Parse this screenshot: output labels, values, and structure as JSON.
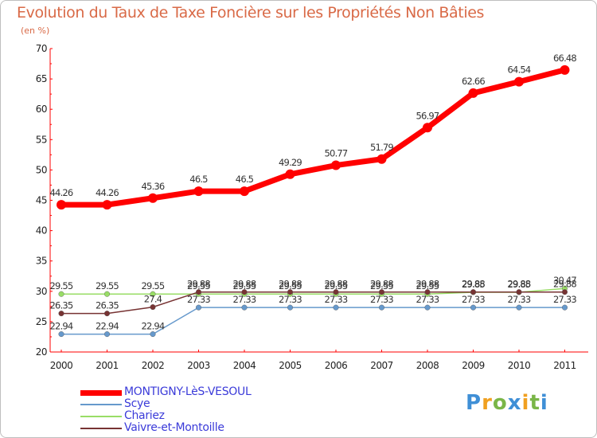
{
  "chart_data": {
    "type": "line",
    "title": "Evolution du Taux de Taxe Foncière sur les Propriétés Non Bâties",
    "ylabel": "(en %)",
    "xlabel": "",
    "ylim": [
      20,
      70
    ],
    "yticks": [
      "20",
      "25",
      "30",
      "35",
      "40",
      "45",
      "50",
      "55",
      "60",
      "65",
      "70"
    ],
    "categories": [
      "2000",
      "2001",
      "2002",
      "2003",
      "2004",
      "2005",
      "2006",
      "2007",
      "2008",
      "2009",
      "2010",
      "2011"
    ],
    "series": [
      {
        "name": "MONTIGNY-LèS-VESOUL",
        "color": "#ff0000",
        "values": [
          44.26,
          44.26,
          45.36,
          46.5,
          46.5,
          49.29,
          50.77,
          51.79,
          56.97,
          62.66,
          64.54,
          66.48
        ],
        "labels": [
          "44.26",
          "44.26",
          "45.36",
          "46.5",
          "46.5",
          "49.29",
          "50.77",
          "51.79",
          "56.97",
          "62.66",
          "64.54",
          "66.48"
        ]
      },
      {
        "name": "Scye",
        "color": "#6699cc",
        "values": [
          22.94,
          22.94,
          22.94,
          27.33,
          27.33,
          27.33,
          27.33,
          27.33,
          27.33,
          27.33,
          27.33,
          27.33
        ],
        "labels": [
          "22.94",
          "22.94",
          "22.94",
          "27.33",
          "27.33",
          "27.33",
          "27.33",
          "27.33",
          "27.33",
          "27.33",
          "27.33",
          "27.33"
        ]
      },
      {
        "name": "Chariez",
        "color": "#99dd66",
        "values": [
          29.55,
          29.55,
          29.55,
          29.55,
          29.55,
          29.55,
          29.55,
          29.55,
          29.55,
          29.85,
          29.85,
          30.47
        ],
        "labels": [
          "29.55",
          "29.55",
          "29.55",
          "29.55",
          "29.55",
          "29.55",
          "29.55",
          "29.55",
          "29.55",
          "29.85",
          "29.85",
          "30.47"
        ]
      },
      {
        "name": "Vaivre-et-Montoille",
        "color": "#773333",
        "values": [
          26.35,
          26.35,
          27.4,
          29.88,
          29.88,
          29.88,
          29.88,
          29.88,
          29.88,
          29.88,
          29.88,
          29.88
        ],
        "labels": [
          "26.35",
          "26.35",
          "27.4",
          "29.88",
          "29.88",
          "29.88",
          "29.88",
          "29.88",
          "29.88",
          "29.88",
          "29.88",
          "29.88"
        ]
      }
    ],
    "legend_position": "bottom-left",
    "grid": false
  },
  "branding": {
    "logo_letters": [
      "P",
      "r",
      "o",
      "x",
      "i",
      "t",
      "i"
    ],
    "logo_colors": [
      "#3f8fd6",
      "#f0a020",
      "#7ab648",
      "#3f8fd6",
      "#f0a020",
      "#7ab648",
      "#3f8fd6"
    ]
  }
}
